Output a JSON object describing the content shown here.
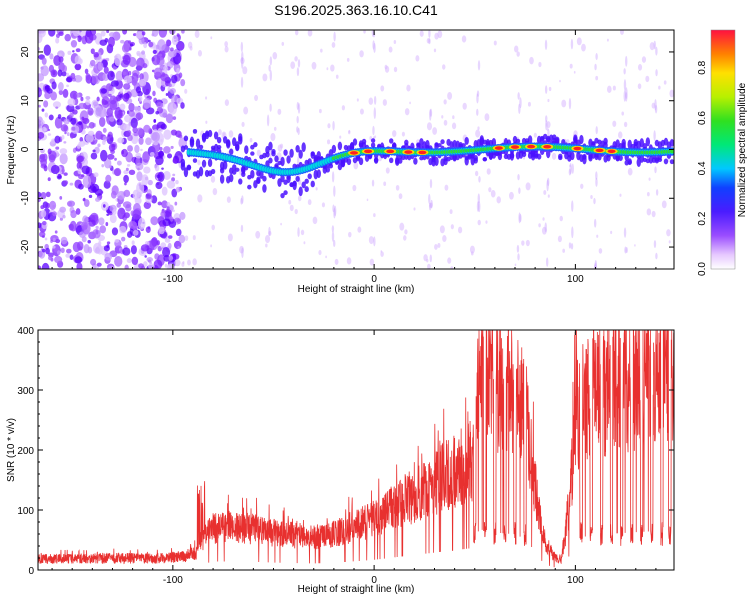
{
  "chart_data": [
    {
      "type": "heatmap",
      "title": "S196.2025.363.16.10.C41",
      "xlabel": "Height of straight line (km)",
      "ylabel": "Frequency (Hz)",
      "xlim": [
        -167,
        149
      ],
      "ylim": [
        -24.5,
        24.5
      ],
      "x_ticks": [
        -100,
        0,
        100
      ],
      "y_ticks": [
        -20,
        -10,
        0,
        10,
        20
      ],
      "colorbar": {
        "label": "Normalized spectral amplitude",
        "range": [
          0.0,
          0.95
        ],
        "ticks": [
          0.0,
          0.2,
          0.4,
          0.6,
          0.8
        ]
      },
      "features": {
        "noise_region_end_km": -95,
        "signal_start_km": -95,
        "carrier_frequency_hz": 0,
        "dip_center_km": -42,
        "dip_frequency_hz": -5
      }
    },
    {
      "type": "line",
      "xlabel": "Height of straight line (km)",
      "ylabel": "SNR (10 * v/v)",
      "xlim": [
        -167,
        149
      ],
      "ylim": [
        0,
        400
      ],
      "x_ticks": [
        -100,
        0,
        100
      ],
      "y_ticks": [
        0,
        100,
        200,
        300,
        400
      ],
      "series": [
        {
          "name": "SNR",
          "color": "#e8302f",
          "x": [
            -167,
            -150,
            -130,
            -110,
            -95,
            -88,
            -84,
            -80,
            -70,
            -60,
            -50,
            -40,
            -30,
            -20,
            -10,
            0,
            10,
            20,
            30,
            40,
            45,
            50,
            52,
            55,
            58,
            60,
            62,
            65,
            68,
            70,
            72,
            75,
            78,
            80,
            83,
            86,
            90,
            93,
            95,
            98,
            100,
            103,
            105,
            110,
            115,
            120,
            125,
            130,
            135,
            140,
            145,
            149
          ],
          "values": [
            18,
            19,
            20,
            19,
            22,
            30,
            55,
            70,
            72,
            68,
            62,
            58,
            55,
            60,
            72,
            85,
            105,
            125,
            145,
            165,
            175,
            185,
            340,
            330,
            340,
            320,
            310,
            305,
            300,
            290,
            280,
            270,
            200,
            140,
            80,
            40,
            20,
            18,
            60,
            150,
            250,
            270,
            280,
            290,
            300,
            305,
            310,
            315,
            320,
            325,
            330,
            340
          ]
        }
      ]
    }
  ]
}
